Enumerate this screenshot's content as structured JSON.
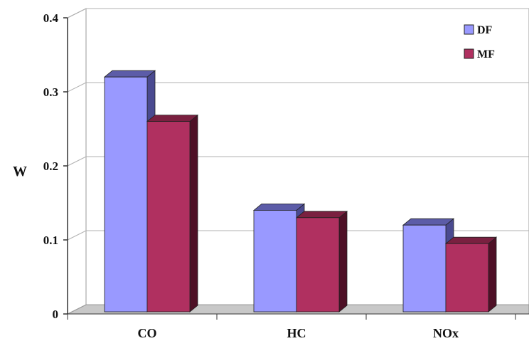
{
  "chart_data": {
    "type": "bar",
    "categories": [
      "CO",
      "HC",
      "NOx"
    ],
    "series": [
      {
        "name": "DF",
        "values": [
          0.32,
          0.14,
          0.12
        ],
        "color": "#9999ff",
        "top_color": "#5c5ca8",
        "side_color": "#4a4a90"
      },
      {
        "name": "MF",
        "values": [
          0.26,
          0.13,
          0.095
        ],
        "color": "#b03060",
        "top_color": "#7a2040",
        "side_color": "#4e1026"
      }
    ],
    "ylabel": "W",
    "yticks": [
      "0",
      "0.1",
      "0.2",
      "0.3",
      "0.4"
    ],
    "ylim": [
      0,
      0.4
    ],
    "grid": true,
    "legend": "top-right",
    "style": "3d-clustered-bar"
  }
}
